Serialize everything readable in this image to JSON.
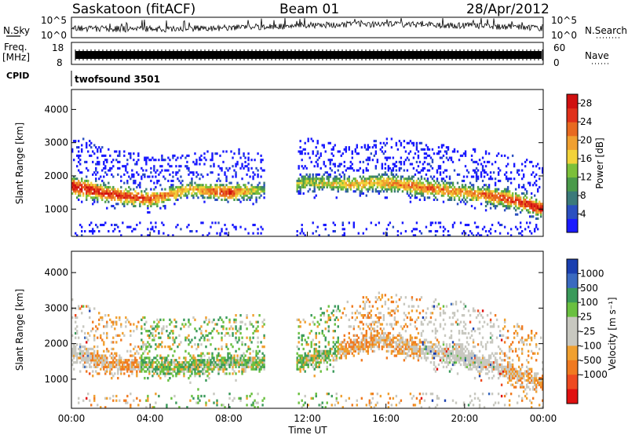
{
  "header": {
    "station": "Saskatoon (fitACF)",
    "beam": "Beam 01",
    "date": "28/Apr/2012"
  },
  "aux_panels": {
    "nsky_label": "N.Sky",
    "nsearch_label": "N.Search",
    "noise_ticks": [
      "10^5",
      "10^0"
    ],
    "freq_label_line1": "Freq.",
    "freq_label_line2": "[MHz]",
    "freq_ticks": [
      "18",
      "8"
    ],
    "nave_label": "Nave",
    "nave_ticks": [
      "60",
      "0"
    ],
    "cpid_label": "CPID",
    "cpid_value": "twofsound 3501"
  },
  "chart_data": [
    {
      "type": "heatmap",
      "panel": "power",
      "ylabel": "Slant Range [km]",
      "ylim": [
        180,
        4600
      ],
      "y_ticks": [
        "1000",
        "2000",
        "3000",
        "4000"
      ],
      "x_ticks": [
        "00:00",
        "04:00",
        "08:00",
        "12:00",
        "16:00",
        "20:00",
        "00:00"
      ],
      "xlim_hours": [
        0,
        24
      ],
      "colorbar": {
        "label": "Power [dB]",
        "ticks": [
          "4",
          "8",
          "12",
          "16",
          "20",
          "24",
          "28"
        ],
        "range": [
          0,
          30
        ],
        "colors": [
          "#1a1aff",
          "#2a4fc0",
          "#3b7a7a",
          "#4a9a4a",
          "#7cc03a",
          "#f2d33a",
          "#f0a030",
          "#e86a20",
          "#e0301a",
          "#d01010"
        ]
      },
      "echo_band": [
        {
          "hour": 0,
          "center_km": 1700,
          "half_width_km": 350,
          "max_db": 28
        },
        {
          "hour": 2,
          "center_km": 1450,
          "half_width_km": 300,
          "max_db": 26
        },
        {
          "hour": 4,
          "center_km": 1300,
          "half_width_km": 300,
          "max_db": 24
        },
        {
          "hour": 6,
          "center_km": 1600,
          "half_width_km": 250,
          "max_db": 18
        },
        {
          "hour": 8,
          "center_km": 1500,
          "half_width_km": 300,
          "max_db": 26
        },
        {
          "hour": 10,
          "center_km": 1600,
          "half_width_km": 250,
          "max_db": 10
        },
        {
          "hour": 12,
          "center_km": 1800,
          "half_width_km": 300,
          "max_db": 14
        },
        {
          "hour": 14,
          "center_km": 1750,
          "half_width_km": 250,
          "max_db": 18
        },
        {
          "hour": 16,
          "center_km": 1800,
          "half_width_km": 300,
          "max_db": 20
        },
        {
          "hour": 18,
          "center_km": 1650,
          "half_width_km": 300,
          "max_db": 22
        },
        {
          "hour": 20,
          "center_km": 1500,
          "half_width_km": 300,
          "max_db": 20
        },
        {
          "hour": 22,
          "center_km": 1350,
          "half_width_km": 300,
          "max_db": 24
        },
        {
          "hour": 24,
          "center_km": 1000,
          "half_width_km": 300,
          "max_db": 28
        }
      ],
      "data_gap_hours": [
        9.8,
        11.4
      ]
    },
    {
      "type": "heatmap",
      "panel": "velocity",
      "ylabel": "Slant Range [km]",
      "ylim": [
        180,
        4600
      ],
      "y_ticks": [
        "1000",
        "2000",
        "3000",
        "4000"
      ],
      "x_ticks": [
        "00:00",
        "04:00",
        "08:00",
        "12:00",
        "16:00",
        "20:00",
        "00:00"
      ],
      "xlabel": "Time UT",
      "colorbar": {
        "label": "Velocity [m s⁻¹]",
        "ticks": [
          "1000",
          "500",
          "100",
          "25",
          "-25",
          "-100",
          "-500",
          "-1000"
        ],
        "colors": [
          "#1a3fb0",
          "#3a6ac0",
          "#3a9a5a",
          "#6ac040",
          "#c8c8c0",
          "#c8c8c0",
          "#f0a030",
          "#f07a20",
          "#ee4a20",
          "#e01010"
        ]
      },
      "echo_band": [
        {
          "hour": 0,
          "center_km": 1700,
          "half_width_km": 350,
          "dominant": "ground"
        },
        {
          "hour": 2,
          "center_km": 1450,
          "half_width_km": 300,
          "dominant": "toward"
        },
        {
          "hour": 5,
          "center_km": 1350,
          "half_width_km": 300,
          "dominant": "away"
        },
        {
          "hour": 8,
          "center_km": 1450,
          "half_width_km": 300,
          "dominant": "away"
        },
        {
          "hour": 11.8,
          "center_km": 1500,
          "half_width_km": 300,
          "dominant": "away"
        },
        {
          "hour": 15.5,
          "center_km": 2100,
          "half_width_km": 300,
          "dominant": "toward"
        },
        {
          "hour": 20,
          "center_km": 1600,
          "half_width_km": 350,
          "dominant": "ground"
        },
        {
          "hour": 24,
          "center_km": 900,
          "half_width_km": 300,
          "dominant": "toward"
        }
      ],
      "data_gap_hours": [
        9.8,
        11.4
      ]
    }
  ]
}
